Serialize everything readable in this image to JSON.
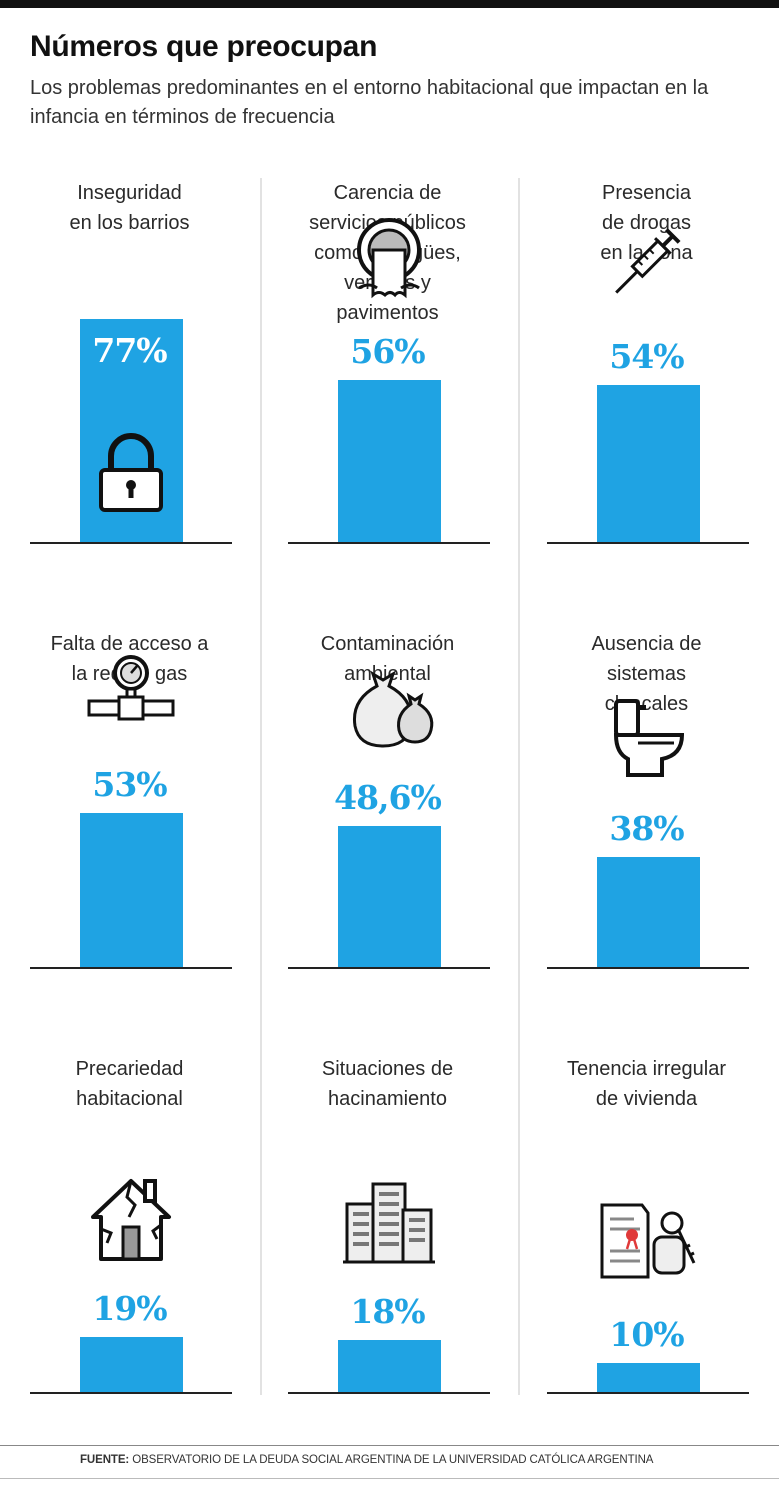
{
  "header": {
    "title": "Números que preocupan",
    "subtitle": "Los problemas predominantes en el entorno habitacional que impactan en la infancia en términos de frecuencia"
  },
  "colors": {
    "bar": "#1fa3e3",
    "text": "#222222"
  },
  "chart_data": {
    "type": "bar",
    "categories": [
      "Inseguridad en los barrios",
      "Carencia de servicios públicos como desagües, veredas y pavimentos",
      "Presencia de drogas en la zona",
      "Falta de acceso a la red de gas",
      "Contaminación ambiental",
      "Ausencia de sistemas cloacales",
      "Precariedad habitacional",
      "Situaciones de hacinamiento",
      "Tenencia irregular de vivienda"
    ],
    "values": [
      77,
      56,
      54,
      53,
      48.6,
      38,
      19,
      18,
      10
    ],
    "unit": "%"
  },
  "items": [
    {
      "label": "Inseguridad\nen los barrios",
      "value_label": "77%",
      "icon": "padlock-icon"
    },
    {
      "label": "Carencia de\nservicios públicos\ncomo desagües,\nveredas y\npavimentos",
      "value_label": "56%",
      "icon": "sewer-pipe-icon"
    },
    {
      "label": "Presencia\nde drogas\nen la zona",
      "value_label": "54%",
      "icon": "syringe-icon"
    },
    {
      "label": "Falta de acceso a\nla red de gas",
      "value_label": "53%",
      "icon": "gas-meter-icon"
    },
    {
      "label": "Contaminación\nambiental",
      "value_label": "48,6%",
      "icon": "garbage-bags-icon"
    },
    {
      "label": "Ausencia de\nsistemas\ncloacales",
      "value_label": "38%",
      "icon": "toilet-icon"
    },
    {
      "label": "Precariedad\nhabitacional",
      "value_label": "19%",
      "icon": "cracked-house-icon"
    },
    {
      "label": "Situaciones de\nhacinamiento",
      "value_label": "18%",
      "icon": "buildings-icon"
    },
    {
      "label": "Tenencia irregular\nde vivienda",
      "value_label": "10%",
      "icon": "deed-and-keys-icon"
    }
  ],
  "footer": {
    "source_label": "FUENTE:",
    "source_text": " OBSERVATORIO DE LA DEUDA SOCIAL ARGENTINA DE LA UNIVERSIDAD CATÓLICA ARGENTINA"
  }
}
